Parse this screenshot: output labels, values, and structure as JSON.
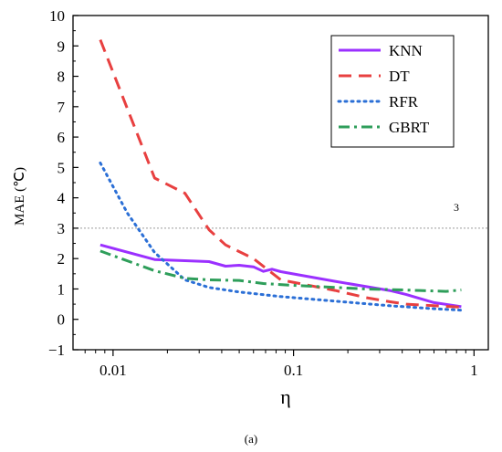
{
  "chart_data": {
    "type": "line",
    "xlabel": "η",
    "ylabel": "MAE (℃)",
    "caption": "(a)",
    "xscale": "log",
    "xlim": [
      0.006,
      1.2
    ],
    "ylim": [
      -1,
      10
    ],
    "x_ticks": [
      0.01,
      0.1,
      1
    ],
    "x_tick_labels": [
      "0.01",
      "0.1",
      "1"
    ],
    "y_ticks": [
      -1,
      0,
      1,
      2,
      3,
      4,
      5,
      6,
      7,
      8,
      9,
      10
    ],
    "y_tick_labels": [
      "−1",
      "0",
      "1",
      "2",
      "3",
      "4",
      "5",
      "6",
      "7",
      "8",
      "9",
      "10"
    ],
    "grid": false,
    "legend_position": "top-right",
    "reference_line": {
      "y": 3,
      "label": "3",
      "style": "dotted",
      "color": "#9a9a9a"
    },
    "series": [
      {
        "name": "KNN",
        "color": "#9b30ff",
        "dash": "solid",
        "x": [
          0.0085,
          0.017,
          0.034,
          0.042,
          0.05,
          0.06,
          0.068,
          0.076,
          0.085,
          0.17,
          0.34,
          0.42,
          0.6,
          0.85
        ],
        "y": [
          2.45,
          1.97,
          1.9,
          1.75,
          1.78,
          1.73,
          1.58,
          1.65,
          1.57,
          1.25,
          0.95,
          0.82,
          0.55,
          0.42
        ]
      },
      {
        "name": "DT",
        "color": "#e84040",
        "dash": "long",
        "x": [
          0.0085,
          0.017,
          0.025,
          0.034,
          0.042,
          0.06,
          0.085,
          0.17,
          0.25,
          0.34,
          0.42,
          0.6,
          0.85
        ],
        "y": [
          9.2,
          4.65,
          4.15,
          2.95,
          2.45,
          2.0,
          1.3,
          0.95,
          0.72,
          0.58,
          0.5,
          0.45,
          0.4
        ]
      },
      {
        "name": "RFR",
        "color": "#2b6fd6",
        "dash": "dot",
        "x": [
          0.0085,
          0.012,
          0.017,
          0.025,
          0.034,
          0.05,
          0.085,
          0.17,
          0.34,
          0.6,
          0.85
        ],
        "y": [
          5.15,
          3.5,
          2.2,
          1.3,
          1.05,
          0.9,
          0.75,
          0.6,
          0.45,
          0.35,
          0.3
        ]
      },
      {
        "name": "GBRT",
        "color": "#2e9e5a",
        "dash": "dashdot",
        "x": [
          0.0085,
          0.017,
          0.025,
          0.034,
          0.05,
          0.068,
          0.1,
          0.17,
          0.25,
          0.34,
          0.5,
          0.7,
          0.85
        ],
        "y": [
          2.25,
          1.6,
          1.35,
          1.3,
          1.28,
          1.18,
          1.12,
          1.05,
          1.0,
          0.98,
          0.95,
          0.92,
          0.97
        ]
      }
    ]
  }
}
